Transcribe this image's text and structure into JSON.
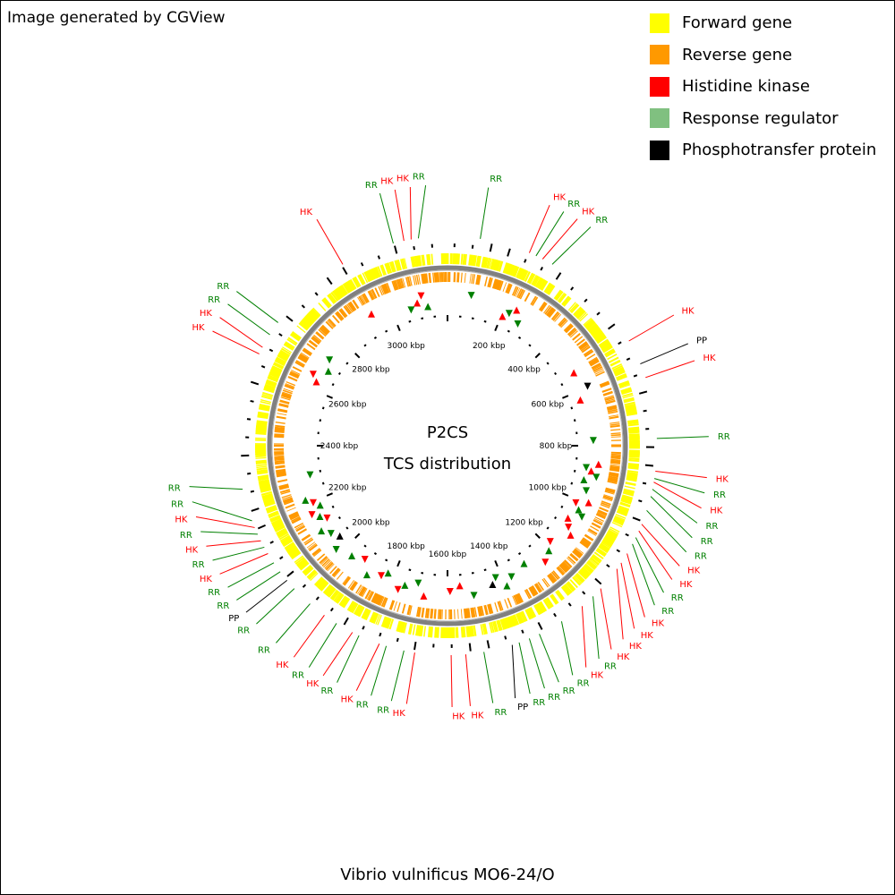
{
  "credit": "Image generated by CGView",
  "footer_title": "Vibrio vulnificus MO6-24/O",
  "center_title": "P2CS",
  "center_subtitle": "TCS distribution",
  "legend": [
    {
      "label": "Forward gene",
      "color": "#ffff00"
    },
    {
      "label": "Reverse gene",
      "color": "#ff9900"
    },
    {
      "label": "Histidine kinase",
      "color": "#ff0000"
    },
    {
      "label": "Response regulator",
      "color": "#80c080"
    },
    {
      "label": "Phosphotransfer protein",
      "color": "#000000"
    }
  ],
  "label_colors": {
    "HK": "#ff0000",
    "RR": "#008000",
    "PP": "#000000"
  },
  "backbone_color": "#808080",
  "genome_length_kbp": 3200,
  "kbp_labels": [
    "200 kbp",
    "400 kbp",
    "600 kbp",
    "800 kbp",
    "1000 kbp",
    "1200 kbp",
    "1400 kbp",
    "1600 kbp",
    "1800 kbp",
    "2000 kbp",
    "2200 kbp",
    "2400 kbp",
    "2600 kbp",
    "2800 kbp",
    "3000 kbp"
  ],
  "features": [
    {
      "label": "RR",
      "deg": 9
    },
    {
      "label": "HK",
      "deg": 23
    },
    {
      "label": "RR",
      "deg": 25
    },
    {
      "label": "HK",
      "deg": 27
    },
    {
      "label": "RR",
      "deg": 30
    },
    {
      "label": "HK",
      "deg": 60
    },
    {
      "label": "PP",
      "deg": 67
    },
    {
      "label": "HK",
      "deg": 71
    },
    {
      "label": "RR",
      "deg": 88
    },
    {
      "label": "HK",
      "deg": 97
    },
    {
      "label": "RR",
      "deg": 99
    },
    {
      "label": "HK",
      "deg": 100
    },
    {
      "label": "RR",
      "deg": 102
    },
    {
      "label": "RR",
      "deg": 104
    },
    {
      "label": "RR",
      "deg": 108
    },
    {
      "label": "HK",
      "deg": 112
    },
    {
      "label": "HK",
      "deg": 114
    },
    {
      "label": "RR",
      "deg": 116
    },
    {
      "label": "RR",
      "deg": 118
    },
    {
      "label": "HK",
      "deg": 121
    },
    {
      "label": "HK",
      "deg": 124
    },
    {
      "label": "HK",
      "deg": 126
    },
    {
      "label": "HK",
      "deg": 133
    },
    {
      "label": "RR",
      "deg": 136
    },
    {
      "label": "HK",
      "deg": 140
    },
    {
      "label": "RR",
      "deg": 147
    },
    {
      "label": "RR",
      "deg": 154
    },
    {
      "label": "RR",
      "deg": 157
    },
    {
      "label": "RR",
      "deg": 160
    },
    {
      "label": "PP",
      "deg": 162
    },
    {
      "label": "RR",
      "deg": 170
    },
    {
      "label": "HK",
      "deg": 175
    },
    {
      "label": "HK",
      "deg": 179
    },
    {
      "label": "HK",
      "deg": 189
    },
    {
      "label": "RR",
      "deg": 192
    },
    {
      "label": "RR",
      "deg": 197
    },
    {
      "label": "HK",
      "deg": 199
    },
    {
      "label": "RR",
      "deg": 205
    },
    {
      "label": "HK",
      "deg": 207
    },
    {
      "label": "RR",
      "deg": 212
    },
    {
      "label": "HK",
      "deg": 216
    },
    {
      "label": "RR",
      "deg": 221
    },
    {
      "label": "RR",
      "deg": 227
    },
    {
      "label": "PP",
      "deg": 230
    },
    {
      "label": "RR",
      "deg": 233
    },
    {
      "label": "RR",
      "deg": 236
    },
    {
      "label": "HK",
      "deg": 239
    },
    {
      "label": "RR",
      "deg": 241
    },
    {
      "label": "HK",
      "deg": 243
    },
    {
      "label": "RR",
      "deg": 245
    },
    {
      "label": "HK",
      "deg": 247
    },
    {
      "label": "RR",
      "deg": 249
    },
    {
      "label": "RR",
      "deg": 258
    },
    {
      "label": "HK",
      "deg": 296
    },
    {
      "label": "HK",
      "deg": 298
    },
    {
      "label": "RR",
      "deg": 302
    },
    {
      "label": "RR",
      "deg": 306
    },
    {
      "label": "HK",
      "deg": 330
    },
    {
      "label": "RR",
      "deg": 345
    },
    {
      "label": "HK",
      "deg": 348
    },
    {
      "label": "HK",
      "deg": 350
    },
    {
      "label": "RR",
      "deg": 352
    }
  ]
}
